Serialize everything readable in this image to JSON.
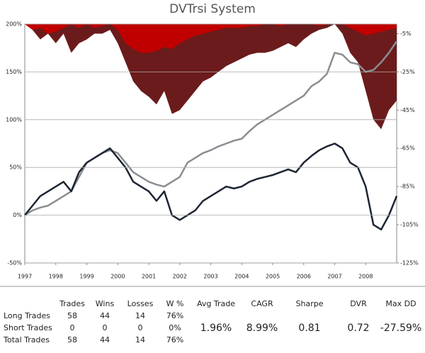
{
  "chart_data": {
    "type": "line",
    "title": "DVTrsi System",
    "x": [
      1997,
      1997.25,
      1997.5,
      1997.75,
      1998,
      1998.25,
      1998.5,
      1998.75,
      1999,
      1999.25,
      1999.5,
      1999.75,
      2000,
      2000.25,
      2000.5,
      2000.75,
      2001,
      2001.25,
      2001.5,
      2001.75,
      2002,
      2002.25,
      2002.5,
      2002.75,
      2003,
      2003.25,
      2003.5,
      2003.75,
      2004,
      2004.25,
      2004.5,
      2004.75,
      2005,
      2005.25,
      2005.5,
      2005.75,
      2006,
      2006.25,
      2006.5,
      2006.75,
      2007,
      2007.25,
      2007.5,
      2007.75,
      2008,
      2008.25,
      2008.5,
      2008.75,
      2009
    ],
    "xlim": [
      1997,
      2009
    ],
    "xticks": [
      1997,
      1998,
      1999,
      2000,
      2001,
      2002,
      2003,
      2004,
      2005,
      2006,
      2007,
      2008
    ],
    "ylim": [
      -50,
      200
    ],
    "yticks": [
      {
        "value": 200,
        "label": "200%"
      },
      {
        "value": 150,
        "label": "150%"
      },
      {
        "value": 100,
        "label": "100%"
      },
      {
        "value": 50,
        "label": "50%"
      },
      {
        "value": 0,
        "label": "0%"
      },
      {
        "value": -50,
        "label": "-50%"
      }
    ],
    "y2lim": [
      -125,
      0
    ],
    "y2ticks": [
      {
        "value": -5,
        "label": "-5%"
      },
      {
        "value": -25,
        "label": "-25%"
      },
      {
        "value": -45,
        "label": "-45%"
      },
      {
        "value": -65,
        "label": "-65%"
      },
      {
        "value": -85,
        "label": "-85%"
      },
      {
        "value": -105,
        "label": "-105%"
      },
      {
        "value": -125,
        "label": "-125%"
      }
    ],
    "grid": true,
    "series": [
      {
        "type": "area",
        "axis": "y2",
        "color": "#6b1b1b",
        "values": [
          0,
          -3,
          -8,
          -5,
          -10,
          -5,
          -15,
          -10,
          -8,
          -5,
          -5,
          -3,
          -10,
          -20,
          -30,
          -35,
          -38,
          -42,
          -35,
          -47,
          -45,
          -40,
          -35,
          -30,
          -28,
          -25,
          -22,
          -20,
          -18,
          -16,
          -15,
          -15,
          -14,
          -12,
          -10,
          -12,
          -8,
          -5,
          -3,
          -2,
          0,
          -5,
          -15,
          -20,
          -35,
          -50,
          -55,
          -45,
          -40
        ]
      },
      {
        "type": "area",
        "axis": "y2",
        "color": "#c00000",
        "values": [
          0,
          -3,
          -2,
          -5,
          -4,
          -2,
          0,
          -2,
          0,
          -2,
          -1,
          0,
          -3,
          -10,
          -13,
          -15,
          -15,
          -14,
          -12,
          -13,
          -10,
          -8,
          -6,
          -5,
          -4,
          -3,
          -2,
          -2,
          -2,
          -1,
          -1,
          0,
          0,
          -1,
          0,
          0,
          0,
          0,
          -1,
          0,
          0,
          0,
          -2,
          -4,
          -6,
          -5,
          -4,
          -3,
          -2
        ]
      },
      {
        "type": "line",
        "color": "#8a8d91",
        "values": [
          0,
          5,
          8,
          10,
          15,
          20,
          25,
          40,
          55,
          60,
          65,
          68,
          65,
          55,
          45,
          40,
          35,
          32,
          30,
          35,
          40,
          55,
          60,
          65,
          68,
          72,
          75,
          78,
          80,
          88,
          95,
          100,
          105,
          110,
          115,
          120,
          125,
          135,
          140,
          148,
          170,
          168,
          160,
          158,
          150,
          152,
          160,
          170,
          182
        ]
      },
      {
        "type": "line",
        "color": "#1c2533",
        "values": [
          0,
          10,
          20,
          25,
          30,
          35,
          25,
          45,
          55,
          60,
          65,
          70,
          60,
          50,
          35,
          30,
          25,
          15,
          25,
          0,
          -5,
          0,
          5,
          15,
          20,
          25,
          30,
          28,
          30,
          35,
          38,
          40,
          42,
          45,
          48,
          45,
          55,
          62,
          68,
          72,
          75,
          70,
          55,
          50,
          30,
          -10,
          -15,
          0,
          20
        ]
      }
    ]
  },
  "table": {
    "columns": [
      "Trades",
      "Wins",
      "Losses",
      "W %"
    ],
    "rows": [
      {
        "label": "Long Trades",
        "cells": [
          58,
          44,
          14,
          "76%"
        ]
      },
      {
        "label": "Short Trades",
        "cells": [
          0,
          0,
          0,
          "0%"
        ]
      },
      {
        "label": "Total Trades",
        "cells": [
          58,
          44,
          14,
          "76%"
        ]
      }
    ]
  },
  "summary": {
    "labels": [
      "Avg Trade",
      "CAGR",
      "Sharpe",
      "DVR",
      "Max DD"
    ],
    "values": [
      "1.96%",
      "8.99%",
      "0.81",
      "0.72",
      "-27.59%"
    ]
  }
}
